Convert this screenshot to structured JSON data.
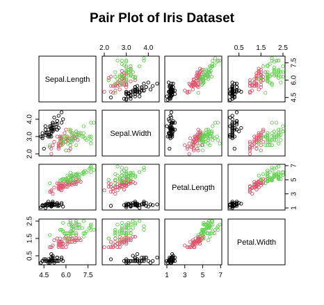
{
  "title": "Pair Plot of Iris Dataset",
  "chart_data": {
    "type": "scatter",
    "variables": [
      "Sepal.Length",
      "Sepal.Width",
      "Petal.Length",
      "Petal.Width"
    ],
    "ranges": [
      [
        4.3,
        7.9
      ],
      [
        2.0,
        4.4
      ],
      [
        1.0,
        6.9
      ],
      [
        0.1,
        2.5
      ]
    ],
    "ticks": [
      [
        "4.5",
        "6.0",
        "7.5"
      ],
      [
        "2.0",
        "3.0",
        "4.0"
      ],
      [
        "1",
        "3",
        "5",
        "7"
      ],
      [
        "0.5",
        "1.5",
        "2.5"
      ]
    ],
    "tick_values": [
      [
        4.5,
        6.0,
        7.5
      ],
      [
        2.0,
        3.0,
        4.0
      ],
      [
        1,
        3,
        5,
        7
      ],
      [
        0.5,
        1.5,
        2.5
      ]
    ],
    "colors": [
      "#000000",
      "#DF536B",
      "#61D04F"
    ],
    "series": [
      {
        "values": [
          [
            5.1,
            3.5,
            1.4,
            0.2
          ],
          [
            4.9,
            3.0,
            1.4,
            0.2
          ],
          [
            4.7,
            3.2,
            1.3,
            0.2
          ],
          [
            4.6,
            3.1,
            1.5,
            0.2
          ],
          [
            5.0,
            3.6,
            1.4,
            0.2
          ],
          [
            5.4,
            3.9,
            1.7,
            0.4
          ],
          [
            4.6,
            3.4,
            1.4,
            0.3
          ],
          [
            5.0,
            3.4,
            1.5,
            0.2
          ],
          [
            4.4,
            2.9,
            1.4,
            0.2
          ],
          [
            4.9,
            3.1,
            1.5,
            0.1
          ],
          [
            5.4,
            3.7,
            1.5,
            0.2
          ],
          [
            4.8,
            3.4,
            1.6,
            0.2
          ],
          [
            4.8,
            3.0,
            1.4,
            0.1
          ],
          [
            4.3,
            3.0,
            1.1,
            0.1
          ],
          [
            5.8,
            4.0,
            1.2,
            0.2
          ],
          [
            5.7,
            4.4,
            1.5,
            0.4
          ],
          [
            5.4,
            3.9,
            1.3,
            0.4
          ],
          [
            5.1,
            3.5,
            1.4,
            0.3
          ],
          [
            5.7,
            3.8,
            1.7,
            0.3
          ],
          [
            5.1,
            3.8,
            1.5,
            0.3
          ],
          [
            5.4,
            3.4,
            1.7,
            0.2
          ],
          [
            5.1,
            3.7,
            1.5,
            0.4
          ],
          [
            4.6,
            3.6,
            1.0,
            0.2
          ],
          [
            5.1,
            3.3,
            1.7,
            0.5
          ],
          [
            4.8,
            3.4,
            1.9,
            0.2
          ],
          [
            5.0,
            3.0,
            1.6,
            0.2
          ],
          [
            5.0,
            3.4,
            1.6,
            0.4
          ],
          [
            5.2,
            3.5,
            1.5,
            0.2
          ],
          [
            5.2,
            3.4,
            1.4,
            0.2
          ],
          [
            4.7,
            3.2,
            1.6,
            0.2
          ],
          [
            4.8,
            3.1,
            1.6,
            0.2
          ],
          [
            5.4,
            3.4,
            1.5,
            0.4
          ],
          [
            5.2,
            4.1,
            1.5,
            0.1
          ],
          [
            5.5,
            4.2,
            1.4,
            0.2
          ],
          [
            4.9,
            3.1,
            1.5,
            0.2
          ],
          [
            5.0,
            3.2,
            1.2,
            0.2
          ],
          [
            5.5,
            3.5,
            1.3,
            0.2
          ],
          [
            4.9,
            3.6,
            1.4,
            0.1
          ],
          [
            4.4,
            3.0,
            1.3,
            0.2
          ],
          [
            5.1,
            3.4,
            1.5,
            0.2
          ],
          [
            5.0,
            3.5,
            1.3,
            0.3
          ],
          [
            4.5,
            2.3,
            1.3,
            0.3
          ],
          [
            4.4,
            3.2,
            1.3,
            0.2
          ],
          [
            5.0,
            3.5,
            1.6,
            0.6
          ],
          [
            5.1,
            3.8,
            1.9,
            0.4
          ],
          [
            4.8,
            3.0,
            1.4,
            0.3
          ],
          [
            5.1,
            3.8,
            1.6,
            0.2
          ],
          [
            4.6,
            3.2,
            1.4,
            0.2
          ],
          [
            5.3,
            3.7,
            1.5,
            0.2
          ],
          [
            5.0,
            3.3,
            1.4,
            0.2
          ]
        ]
      },
      {
        "values": [
          [
            7.0,
            3.2,
            4.7,
            1.4
          ],
          [
            6.4,
            3.2,
            4.5,
            1.5
          ],
          [
            6.9,
            3.1,
            4.9,
            1.5
          ],
          [
            5.5,
            2.3,
            4.0,
            1.3
          ],
          [
            6.5,
            2.8,
            4.6,
            1.5
          ],
          [
            5.7,
            2.8,
            4.5,
            1.3
          ],
          [
            6.3,
            3.3,
            4.7,
            1.6
          ],
          [
            4.9,
            2.4,
            3.3,
            1.0
          ],
          [
            6.6,
            2.9,
            4.6,
            1.3
          ],
          [
            5.2,
            2.7,
            3.9,
            1.4
          ],
          [
            5.0,
            2.0,
            3.5,
            1.0
          ],
          [
            5.9,
            3.0,
            4.2,
            1.5
          ],
          [
            6.0,
            2.2,
            4.0,
            1.0
          ],
          [
            6.1,
            2.9,
            4.7,
            1.4
          ],
          [
            5.6,
            2.9,
            3.6,
            1.3
          ],
          [
            6.7,
            3.1,
            4.4,
            1.4
          ],
          [
            5.6,
            3.0,
            4.5,
            1.5
          ],
          [
            5.8,
            2.7,
            4.1,
            1.0
          ],
          [
            6.2,
            2.2,
            4.5,
            1.5
          ],
          [
            5.6,
            2.5,
            3.9,
            1.1
          ],
          [
            5.9,
            3.2,
            4.8,
            1.8
          ],
          [
            6.1,
            2.8,
            4.0,
            1.3
          ],
          [
            6.3,
            2.5,
            4.9,
            1.5
          ],
          [
            6.1,
            2.8,
            4.7,
            1.2
          ],
          [
            6.4,
            2.9,
            4.3,
            1.3
          ],
          [
            6.6,
            3.0,
            4.4,
            1.4
          ],
          [
            6.8,
            2.8,
            4.8,
            1.4
          ],
          [
            6.7,
            3.0,
            5.0,
            1.7
          ],
          [
            6.0,
            2.9,
            4.5,
            1.5
          ],
          [
            5.7,
            2.6,
            3.5,
            1.0
          ],
          [
            5.5,
            2.4,
            3.8,
            1.1
          ],
          [
            5.5,
            2.4,
            3.7,
            1.0
          ],
          [
            5.8,
            2.7,
            3.9,
            1.2
          ],
          [
            6.0,
            2.7,
            5.1,
            1.6
          ],
          [
            5.4,
            3.0,
            4.5,
            1.5
          ],
          [
            6.0,
            3.4,
            4.5,
            1.6
          ],
          [
            6.7,
            3.1,
            4.7,
            1.5
          ],
          [
            6.3,
            2.3,
            4.4,
            1.3
          ],
          [
            5.6,
            3.0,
            4.1,
            1.3
          ],
          [
            5.5,
            2.5,
            4.0,
            1.3
          ],
          [
            5.5,
            2.6,
            4.4,
            1.2
          ],
          [
            6.1,
            3.0,
            4.6,
            1.4
          ],
          [
            5.8,
            2.6,
            4.0,
            1.2
          ],
          [
            5.0,
            2.3,
            3.3,
            1.0
          ],
          [
            5.6,
            2.7,
            4.2,
            1.3
          ],
          [
            5.7,
            3.0,
            4.2,
            1.2
          ],
          [
            5.7,
            2.9,
            4.2,
            1.3
          ],
          [
            6.2,
            2.9,
            4.3,
            1.3
          ],
          [
            5.1,
            2.5,
            3.0,
            1.1
          ],
          [
            5.7,
            2.8,
            4.1,
            1.3
          ]
        ]
      },
      {
        "values": [
          [
            6.3,
            3.3,
            6.0,
            2.5
          ],
          [
            5.8,
            2.7,
            5.1,
            1.9
          ],
          [
            7.1,
            3.0,
            5.9,
            2.1
          ],
          [
            6.3,
            2.9,
            5.6,
            1.8
          ],
          [
            6.5,
            3.0,
            5.8,
            2.2
          ],
          [
            7.6,
            3.0,
            6.6,
            2.1
          ],
          [
            4.9,
            2.5,
            4.5,
            1.7
          ],
          [
            7.3,
            2.9,
            6.3,
            1.8
          ],
          [
            6.7,
            2.5,
            5.8,
            1.8
          ],
          [
            7.2,
            3.6,
            6.1,
            2.5
          ],
          [
            6.5,
            3.2,
            5.1,
            2.0
          ],
          [
            6.4,
            2.7,
            5.3,
            1.9
          ],
          [
            6.8,
            3.0,
            5.5,
            2.1
          ],
          [
            5.7,
            2.5,
            5.0,
            2.0
          ],
          [
            5.8,
            2.8,
            5.1,
            2.4
          ],
          [
            6.4,
            3.2,
            5.3,
            2.3
          ],
          [
            6.5,
            3.0,
            5.5,
            1.8
          ],
          [
            7.7,
            3.8,
            6.7,
            2.2
          ],
          [
            7.7,
            2.6,
            6.9,
            2.3
          ],
          [
            6.0,
            2.2,
            5.0,
            1.5
          ],
          [
            6.9,
            3.2,
            5.7,
            2.3
          ],
          [
            5.6,
            2.8,
            4.9,
            2.0
          ],
          [
            7.7,
            2.8,
            6.7,
            2.0
          ],
          [
            6.3,
            2.7,
            4.9,
            1.8
          ],
          [
            6.7,
            3.3,
            5.7,
            2.1
          ],
          [
            7.2,
            3.2,
            6.0,
            1.8
          ],
          [
            6.2,
            2.8,
            4.8,
            1.8
          ],
          [
            6.1,
            3.0,
            4.9,
            1.8
          ],
          [
            6.4,
            2.8,
            5.6,
            2.1
          ],
          [
            7.2,
            3.0,
            5.8,
            1.6
          ],
          [
            7.4,
            2.8,
            6.1,
            1.9
          ],
          [
            7.9,
            3.8,
            6.4,
            2.0
          ],
          [
            6.4,
            2.8,
            5.6,
            2.2
          ],
          [
            6.3,
            2.8,
            5.1,
            1.5
          ],
          [
            6.1,
            2.6,
            5.6,
            1.4
          ],
          [
            7.7,
            3.0,
            6.1,
            2.3
          ],
          [
            6.3,
            3.4,
            5.6,
            2.4
          ],
          [
            6.4,
            3.1,
            5.5,
            1.8
          ],
          [
            6.0,
            3.0,
            4.8,
            1.8
          ],
          [
            6.9,
            3.1,
            5.4,
            2.1
          ],
          [
            6.7,
            3.1,
            5.6,
            2.4
          ],
          [
            6.9,
            3.1,
            5.1,
            2.3
          ],
          [
            5.8,
            2.7,
            5.1,
            1.9
          ],
          [
            6.8,
            3.2,
            5.9,
            2.3
          ],
          [
            6.7,
            3.3,
            5.7,
            2.5
          ],
          [
            6.7,
            3.0,
            5.2,
            2.3
          ],
          [
            6.3,
            2.5,
            5.0,
            1.9
          ],
          [
            6.5,
            3.0,
            5.2,
            2.0
          ],
          [
            6.2,
            3.4,
            5.4,
            2.3
          ],
          [
            5.9,
            3.0,
            5.1,
            1.8
          ]
        ]
      }
    ]
  }
}
